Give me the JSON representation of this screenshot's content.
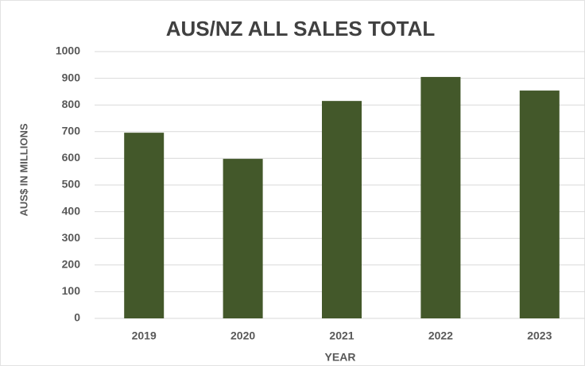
{
  "chart_data": {
    "type": "bar",
    "title": "AUS/NZ ALL SALES TOTAL",
    "x_label": "YEAR",
    "y_label": "AUS$ IN MILLIONS",
    "categories": [
      "2019",
      "2020",
      "2021",
      "2022",
      "2023"
    ],
    "values": [
      696,
      598,
      815,
      905,
      854
    ],
    "color": "#43582a",
    "ylim": [
      0,
      1000
    ],
    "yticks": [
      0,
      100,
      200,
      300,
      400,
      500,
      600,
      700,
      800,
      900,
      1000
    ],
    "grid": true
  }
}
